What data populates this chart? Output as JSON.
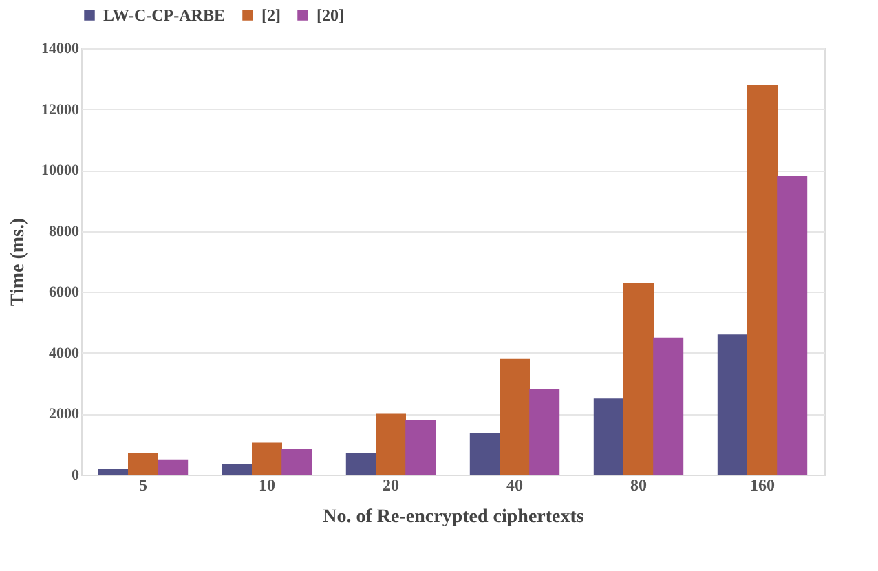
{
  "chart_data": {
    "type": "bar",
    "xlabel": "No. of Re-encrypted ciphertexts",
    "ylabel": "Time (ms.)",
    "categories": [
      "5",
      "10",
      "20",
      "40",
      "80",
      "160"
    ],
    "series": [
      {
        "name": "LW-C-CP-ARBE",
        "color": "#525288",
        "values": [
          180,
          350,
          700,
          1380,
          2500,
          4600
        ]
      },
      {
        "name": "[2]",
        "color": "#c4652d",
        "values": [
          700,
          1050,
          2000,
          3800,
          6300,
          12800
        ]
      },
      {
        "name": "[20]",
        "color": "#a04ea0",
        "values": [
          500,
          850,
          1800,
          2800,
          4500,
          9800
        ]
      }
    ],
    "ylim": [
      0,
      14000
    ],
    "yticks": [
      0,
      2000,
      4000,
      6000,
      8000,
      10000,
      12000,
      14000
    ],
    "grid": "y",
    "legend": "top"
  }
}
